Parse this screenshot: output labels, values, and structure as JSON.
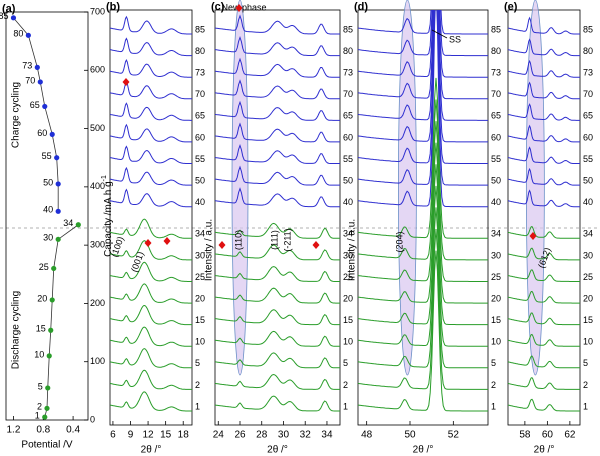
{
  "chart_data": [
    {
      "type": "line",
      "panel_label": "(a)",
      "xlabel": "Potential /V",
      "ylabel": "Capacity /mA h g",
      "ylabel_sup": "-1",
      "xlim": [
        1.3,
        0.2
      ],
      "xticks": [
        1.2,
        0.8,
        0.4
      ],
      "ylim": [
        0,
        700
      ],
      "yticks": [
        0,
        100,
        200,
        300,
        400,
        500,
        600,
        700
      ],
      "line_color": "#333333",
      "series": [
        {
          "color": "#1f2fd6",
          "x": [
            1.2,
            1.0,
            0.88,
            0.84,
            0.78,
            0.68,
            0.62,
            0.6,
            0.6
          ],
          "values": [
            690,
            660,
            605,
            580,
            538,
            490,
            450,
            405,
            358
          ],
          "point_labels": [
            "85",
            "80",
            "73",
            "70",
            "65",
            "60",
            "55",
            "50",
            "40"
          ]
        },
        {
          "color": "#2a9d2a",
          "x": [
            0.33,
            0.6,
            0.66,
            0.68,
            0.7,
            0.72,
            0.74,
            0.75,
            0.78
          ],
          "values": [
            335,
            310,
            260,
            206,
            154,
            110,
            55,
            20,
            5
          ],
          "point_labels": [
            "34",
            "30",
            "25",
            "20",
            "15",
            "10",
            "5",
            "2",
            "1"
          ]
        }
      ],
      "annotations": [
        "Charge cycling",
        "Discharge cycling"
      ]
    },
    {
      "type": "stacked",
      "panel_label": "(b)",
      "xlabel": "2θ /°",
      "xlim": [
        5.5,
        19.5
      ],
      "xticks": [
        6,
        9,
        12,
        15,
        18
      ],
      "series": [
        {
          "color": "#2f2fd0",
          "labels": [
            "85",
            "80",
            "73",
            "70",
            "65",
            "60",
            "55",
            "50",
            "40"
          ]
        },
        {
          "color": "#2a9d2a",
          "labels": [
            "34",
            "30",
            "25",
            "20",
            "15",
            "10",
            "5",
            "2",
            "1"
          ]
        }
      ],
      "annotations": [
        "(100)",
        "(001)"
      ]
    },
    {
      "type": "stacked",
      "panel_label": "(c)",
      "xlabel": "2θ /°",
      "ylabel": "Intensity / a.u.",
      "xlim": [
        23.7,
        35.2
      ],
      "xticks": [
        24,
        26,
        28,
        30,
        32,
        34
      ],
      "series": [
        {
          "color": "#2f2fd0",
          "labels": [
            "85",
            "80",
            "73",
            "70",
            "65",
            "60",
            "55",
            "50",
            "40"
          ]
        },
        {
          "color": "#2a9d2a",
          "labels": [
            "34",
            "30",
            "25",
            "20",
            "15",
            "10",
            "5",
            "2",
            "1"
          ]
        }
      ],
      "annotations": [
        "New phase",
        "(110)",
        "(111)",
        "(-211)"
      ]
    },
    {
      "type": "stacked",
      "panel_label": "(d)",
      "xlabel": "2θ /°",
      "ylabel": "Intensity / a.u.",
      "xlim": [
        47.6,
        53.6
      ],
      "xticks": [
        48,
        50,
        52
      ],
      "series": [
        {
          "color": "#2f2fd0",
          "labels": [
            "85",
            "80",
            "73",
            "70",
            "65",
            "60",
            "55",
            "50",
            "40"
          ]
        },
        {
          "color": "#2a9d2a",
          "labels": [
            "34",
            "30",
            "25",
            "20",
            "15",
            "10",
            "5",
            "2",
            "1"
          ]
        }
      ],
      "annotations": [
        "SS",
        "(204)"
      ]
    },
    {
      "type": "stacked",
      "panel_label": "(e)",
      "xlabel": "2θ /°",
      "xlim": [
        56.5,
        62.9
      ],
      "xticks": [
        58,
        60,
        62
      ],
      "series": [
        {
          "color": "#2f2fd0",
          "labels": [
            "85",
            "80",
            "73",
            "70",
            "65",
            "60",
            "55",
            "50",
            "40"
          ]
        },
        {
          "color": "#2a9d2a",
          "labels": [
            "34",
            "30",
            "25",
            "20",
            "15",
            "10",
            "5",
            "2",
            "1"
          ]
        }
      ],
      "annotations": [
        "(612)"
      ]
    }
  ]
}
